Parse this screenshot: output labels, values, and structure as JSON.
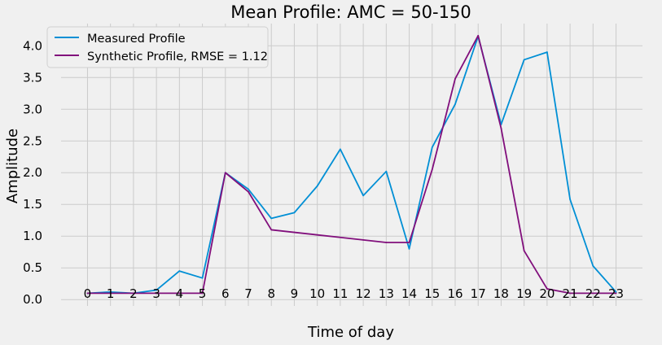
{
  "chart_data": {
    "type": "line",
    "title": "Mean Profile: AMC = 50-150",
    "xlabel": "Time of day",
    "ylabel": "Amplitude",
    "x": [
      0,
      1,
      2,
      3,
      4,
      5,
      6,
      7,
      8,
      9,
      10,
      11,
      12,
      13,
      14,
      15,
      16,
      17,
      18,
      19,
      20,
      21,
      22,
      23
    ],
    "x_ticks": [
      "0",
      "1",
      "2",
      "3",
      "4",
      "5",
      "6",
      "7",
      "8",
      "9",
      "10",
      "11",
      "12",
      "13",
      "14",
      "15",
      "16",
      "17",
      "18",
      "19",
      "20",
      "21",
      "22",
      "23"
    ],
    "y_ticks": [
      "0.0",
      "0.5",
      "1.0",
      "1.5",
      "2.0",
      "2.5",
      "3.0",
      "3.5",
      "4.0"
    ],
    "xlim": [
      -1.15,
      24.15
    ],
    "ylim": [
      -0.1,
      4.35
    ],
    "grid": true,
    "legend": "top-left",
    "series": [
      {
        "name": "Measured Profile",
        "color": "#008fd5",
        "values": [
          0.1,
          0.12,
          0.1,
          0.15,
          0.45,
          0.34,
          2.0,
          1.74,
          1.28,
          1.37,
          1.79,
          2.37,
          1.64,
          2.02,
          0.8,
          2.4,
          3.08,
          4.15,
          2.76,
          3.78,
          3.9,
          1.58,
          0.53,
          0.12
        ]
      },
      {
        "name": "Synthetic Profile, RMSE = 1.12",
        "color": "#810f7c",
        "values": [
          0.1,
          0.1,
          0.1,
          0.1,
          0.1,
          0.1,
          2.0,
          1.7,
          1.1,
          1.06,
          1.02,
          0.98,
          0.94,
          0.9,
          0.9,
          2.05,
          3.48,
          4.16,
          2.7,
          0.77,
          0.17,
          0.1,
          0.1,
          0.1
        ]
      }
    ]
  }
}
